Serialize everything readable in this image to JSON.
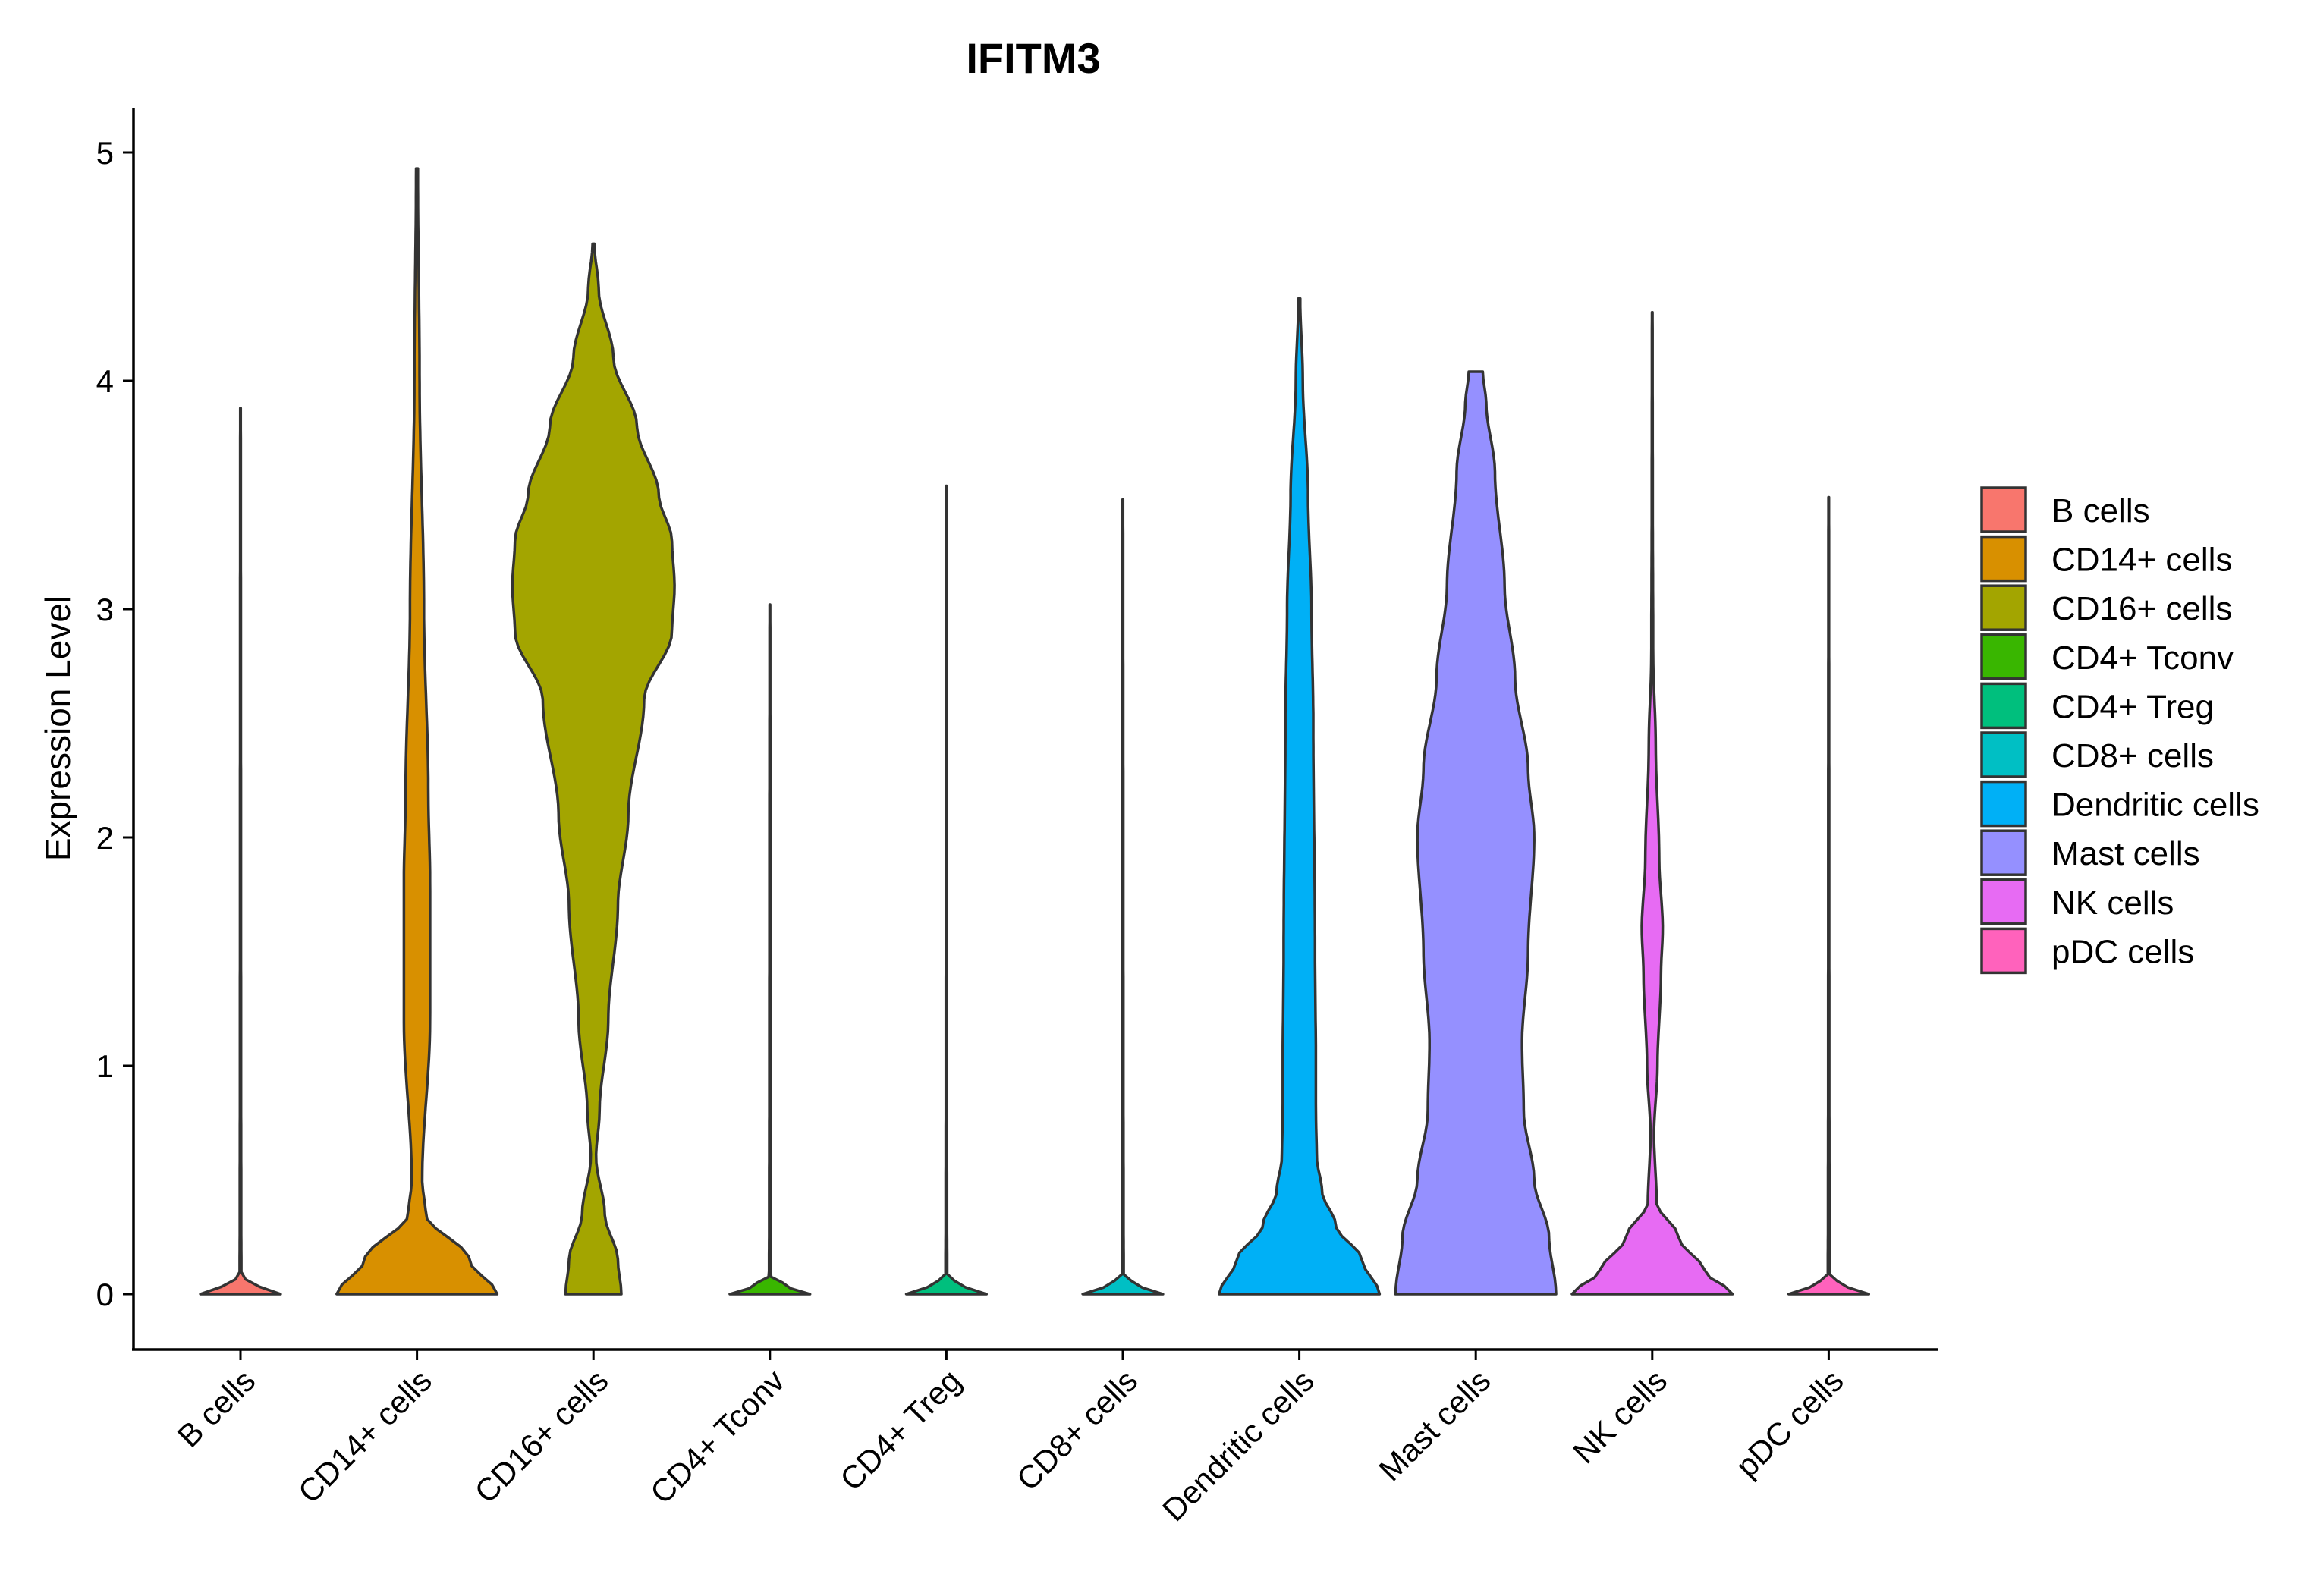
{
  "chart_data": {
    "type": "violin",
    "title": "IFITM3",
    "xlabel": "",
    "ylabel": "Expression Level",
    "ylim": [
      -0.25,
      5.2
    ],
    "yticks": [
      "0",
      "1",
      "2",
      "3",
      "4",
      "5"
    ],
    "grid": false,
    "legend_position": "right",
    "categories": [
      "B cells",
      "CD14+ cells",
      "CD16+ cells",
      "CD4+ Tconv",
      "CD4+ Treg",
      "CD8+ cells",
      "Dendritic cells",
      "Mast cells",
      "NK cells",
      "pDC cells"
    ],
    "colors": [
      "#F8766D",
      "#D89000",
      "#A3A500",
      "#39B600",
      "#00BF7D",
      "#00BFC4",
      "#00B0F6",
      "#9590FF",
      "#E76BF3",
      "#FF62BC"
    ],
    "series": [
      {
        "name": "B cells",
        "max": 3.88,
        "profile": [
          [
            0,
            0.46
          ],
          [
            0.03,
            0.22
          ],
          [
            0.08,
            0.01
          ],
          [
            0.3,
            0.008
          ],
          [
            1,
            0.006
          ],
          [
            2,
            0.005
          ],
          [
            3,
            0.004
          ],
          [
            3.88,
            0.003
          ]
        ]
      },
      {
        "name": "CD14+ cells",
        "max": 4.93,
        "profile": [
          [
            0,
            0.92
          ],
          [
            0.15,
            0.6
          ],
          [
            0.35,
            0.1
          ],
          [
            0.5,
            0.06
          ],
          [
            1.2,
            0.15
          ],
          [
            1.8,
            0.15
          ],
          [
            2.2,
            0.13
          ],
          [
            3.0,
            0.08
          ],
          [
            4.0,
            0.03
          ],
          [
            4.93,
            0.01
          ]
        ]
      },
      {
        "name": "CD16+ cells",
        "max": 4.6,
        "profile": [
          [
            0,
            0.32
          ],
          [
            0.15,
            0.28
          ],
          [
            0.35,
            0.13
          ],
          [
            0.6,
            0.03
          ],
          [
            0.8,
            0.07
          ],
          [
            1.2,
            0.17
          ],
          [
            1.7,
            0.28
          ],
          [
            2.1,
            0.4
          ],
          [
            2.6,
            0.58
          ],
          [
            2.9,
            0.9
          ],
          [
            3.1,
            0.93
          ],
          [
            3.3,
            0.9
          ],
          [
            3.5,
            0.75
          ],
          [
            3.8,
            0.5
          ],
          [
            4.1,
            0.23
          ],
          [
            4.4,
            0.06
          ],
          [
            4.6,
            0.01
          ]
        ]
      },
      {
        "name": "CD4+ Tconv",
        "max": 3.02,
        "profile": [
          [
            0,
            0.46
          ],
          [
            0.03,
            0.22
          ],
          [
            0.08,
            0.01
          ],
          [
            0.3,
            0.008
          ],
          [
            1,
            0.006
          ],
          [
            2,
            0.005
          ],
          [
            3.02,
            0.003
          ]
        ]
      },
      {
        "name": "CD4+ Treg",
        "max": 3.54,
        "profile": [
          [
            0,
            0.46
          ],
          [
            0.03,
            0.22
          ],
          [
            0.08,
            0.01
          ],
          [
            0.3,
            0.008
          ],
          [
            1,
            0.006
          ],
          [
            2,
            0.005
          ],
          [
            3.54,
            0.003
          ]
        ]
      },
      {
        "name": "CD8+ cells",
        "max": 3.48,
        "profile": [
          [
            0,
            0.46
          ],
          [
            0.03,
            0.22
          ],
          [
            0.08,
            0.01
          ],
          [
            0.3,
            0.008
          ],
          [
            1,
            0.006
          ],
          [
            2,
            0.005
          ],
          [
            3.48,
            0.003
          ]
        ]
      },
      {
        "name": "Dendritic cells",
        "max": 4.36,
        "profile": [
          [
            0,
            0.92
          ],
          [
            0.15,
            0.72
          ],
          [
            0.3,
            0.42
          ],
          [
            0.45,
            0.26
          ],
          [
            0.6,
            0.2
          ],
          [
            0.8,
            0.19
          ],
          [
            1.0,
            0.19
          ],
          [
            1.5,
            0.18
          ],
          [
            2.5,
            0.16
          ],
          [
            3.0,
            0.14
          ],
          [
            3.5,
            0.1
          ],
          [
            4.0,
            0.04
          ],
          [
            4.36,
            0.01
          ]
        ]
      },
      {
        "name": "Mast cells",
        "max": 4.04,
        "profile": [
          [
            0,
            0.92
          ],
          [
            0.25,
            0.84
          ],
          [
            0.5,
            0.67
          ],
          [
            0.8,
            0.55
          ],
          [
            1.1,
            0.53
          ],
          [
            1.5,
            0.6
          ],
          [
            2.0,
            0.67
          ],
          [
            2.3,
            0.6
          ],
          [
            2.7,
            0.45
          ],
          [
            3.1,
            0.33
          ],
          [
            3.6,
            0.22
          ],
          [
            3.9,
            0.12
          ],
          [
            4.04,
            0.08
          ]
        ]
      },
      {
        "name": "NK cells",
        "max": 4.3,
        "profile": [
          [
            0,
            0.92
          ],
          [
            0.1,
            0.6
          ],
          [
            0.25,
            0.3
          ],
          [
            0.4,
            0.05
          ],
          [
            0.7,
            0.02
          ],
          [
            1.0,
            0.06
          ],
          [
            1.4,
            0.1
          ],
          [
            1.6,
            0.12
          ],
          [
            1.9,
            0.08
          ],
          [
            2.4,
            0.04
          ],
          [
            2.8,
            0.01
          ],
          [
            3.5,
            0.005
          ],
          [
            4.3,
            0.003
          ]
        ]
      },
      {
        "name": "pDC cells",
        "max": 3.49,
        "profile": [
          [
            0,
            0.46
          ],
          [
            0.03,
            0.22
          ],
          [
            0.08,
            0.01
          ],
          [
            0.3,
            0.008
          ],
          [
            1,
            0.006
          ],
          [
            2,
            0.005
          ],
          [
            3.49,
            0.003
          ]
        ]
      }
    ]
  }
}
